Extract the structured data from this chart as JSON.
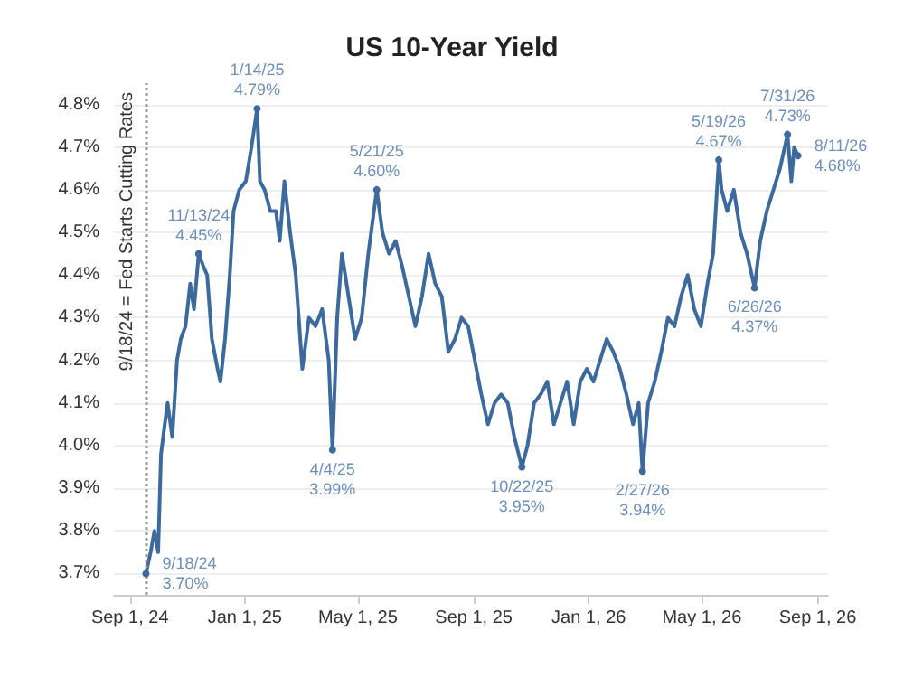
{
  "chart_data": {
    "type": "line",
    "title": "US 10-Year Yield",
    "x": [
      "2024-09-18",
      "2024-09-23",
      "2024-09-27",
      "2024-10-01",
      "2024-10-04",
      "2024-10-08",
      "2024-10-11",
      "2024-10-16",
      "2024-10-21",
      "2024-10-25",
      "2024-10-30",
      "2024-11-04",
      "2024-11-08",
      "2024-11-13",
      "2024-11-18",
      "2024-11-22",
      "2024-11-27",
      "2024-12-03",
      "2024-12-06",
      "2024-12-11",
      "2024-12-16",
      "2024-12-20",
      "2024-12-26",
      "2025-01-02",
      "2025-01-08",
      "2025-01-14",
      "2025-01-17",
      "2025-01-22",
      "2025-01-28",
      "2025-02-03",
      "2025-02-07",
      "2025-02-12",
      "2025-02-18",
      "2025-02-24",
      "2025-03-03",
      "2025-03-10",
      "2025-03-17",
      "2025-03-24",
      "2025-03-31",
      "2025-04-04",
      "2025-04-09",
      "2025-04-14",
      "2025-04-21",
      "2025-04-28",
      "2025-05-05",
      "2025-05-12",
      "2025-05-21",
      "2025-05-27",
      "2025-06-03",
      "2025-06-10",
      "2025-06-17",
      "2025-06-24",
      "2025-07-01",
      "2025-07-08",
      "2025-07-15",
      "2025-07-22",
      "2025-07-29",
      "2025-08-05",
      "2025-08-12",
      "2025-08-19",
      "2025-08-26",
      "2025-09-02",
      "2025-09-09",
      "2025-09-16",
      "2025-09-23",
      "2025-09-30",
      "2025-10-07",
      "2025-10-14",
      "2025-10-22",
      "2025-10-28",
      "2025-11-04",
      "2025-11-11",
      "2025-11-18",
      "2025-11-25",
      "2025-12-02",
      "2025-12-09",
      "2025-12-16",
      "2025-12-23",
      "2025-12-30",
      "2026-01-06",
      "2026-01-13",
      "2026-01-20",
      "2026-01-27",
      "2026-02-03",
      "2026-02-10",
      "2026-02-17",
      "2026-02-23",
      "2026-02-27",
      "2026-03-05",
      "2026-03-12",
      "2026-03-19",
      "2026-03-26",
      "2026-04-02",
      "2026-04-09",
      "2026-04-16",
      "2026-04-23",
      "2026-04-30",
      "2026-05-07",
      "2026-05-13",
      "2026-05-19",
      "2026-05-22",
      "2026-05-28",
      "2026-06-04",
      "2026-06-11",
      "2026-06-18",
      "2026-06-26",
      "2026-07-02",
      "2026-07-09",
      "2026-07-16",
      "2026-07-23",
      "2026-07-31",
      "2026-08-04",
      "2026-08-07",
      "2026-08-11"
    ],
    "series": [
      {
        "color": "#3d6a9c",
        "values": [
          3.7,
          3.75,
          3.8,
          3.75,
          3.98,
          4.05,
          4.1,
          4.02,
          4.2,
          4.25,
          4.28,
          4.38,
          4.32,
          4.45,
          4.42,
          4.4,
          4.25,
          4.18,
          4.15,
          4.25,
          4.4,
          4.55,
          4.6,
          4.62,
          4.7,
          4.79,
          4.62,
          4.6,
          4.55,
          4.55,
          4.48,
          4.62,
          4.5,
          4.4,
          4.18,
          4.3,
          4.28,
          4.32,
          4.2,
          3.99,
          4.3,
          4.45,
          4.35,
          4.25,
          4.3,
          4.45,
          4.6,
          4.5,
          4.45,
          4.48,
          4.42,
          4.35,
          4.28,
          4.35,
          4.45,
          4.38,
          4.35,
          4.22,
          4.25,
          4.3,
          4.28,
          4.2,
          4.12,
          4.05,
          4.1,
          4.12,
          4.1,
          4.02,
          3.95,
          4.0,
          4.1,
          4.12,
          4.15,
          4.05,
          4.1,
          4.15,
          4.05,
          4.15,
          4.18,
          4.15,
          4.2,
          4.25,
          4.22,
          4.18,
          4.12,
          4.05,
          4.1,
          3.94,
          4.1,
          4.15,
          4.22,
          4.3,
          4.28,
          4.35,
          4.4,
          4.32,
          4.28,
          4.38,
          4.45,
          4.67,
          4.6,
          4.55,
          4.6,
          4.5,
          4.45,
          4.37,
          4.48,
          4.55,
          4.6,
          4.65,
          4.73,
          4.62,
          4.7,
          4.68
        ]
      }
    ],
    "xlim": [
      "2024-08-15",
      "2026-09-12"
    ],
    "xticks": [
      {
        "value": "2024-09-01",
        "label": "Sep 1, 24"
      },
      {
        "value": "2025-01-01",
        "label": "Jan 1, 25"
      },
      {
        "value": "2025-05-01",
        "label": "May 1, 25"
      },
      {
        "value": "2025-09-01",
        "label": "Sep 1, 25"
      },
      {
        "value": "2026-01-01",
        "label": "Jan 1, 26"
      },
      {
        "value": "2026-05-01",
        "label": "May 1, 26"
      },
      {
        "value": "2026-09-01",
        "label": "Sep 1, 26"
      }
    ],
    "ylim": [
      3.65,
      4.85
    ],
    "yticks": [
      {
        "value": 3.7,
        "label": "3.7%"
      },
      {
        "value": 3.8,
        "label": "3.8%"
      },
      {
        "value": 3.9,
        "label": "3.9%"
      },
      {
        "value": 4.0,
        "label": "4.0%"
      },
      {
        "value": 4.1,
        "label": "4.1%"
      },
      {
        "value": 4.2,
        "label": "4.2%"
      },
      {
        "value": 4.3,
        "label": "4.3%"
      },
      {
        "value": 4.4,
        "label": "4.4%"
      },
      {
        "value": 4.5,
        "label": "4.5%"
      },
      {
        "value": 4.6,
        "label": "4.6%"
      },
      {
        "value": 4.7,
        "label": "4.7%"
      },
      {
        "value": 4.8,
        "label": "4.8%"
      }
    ],
    "grid": "y",
    "marker": "none",
    "line_style": "solid",
    "ref_lines": [
      {
        "axis": "x",
        "value": "2024-09-18",
        "label": "9/18/24 = Fed Starts Cutting Rates",
        "color": "#999999",
        "line_style": "dotted"
      }
    ],
    "annotations": [
      {
        "text": "9/18/24\n3.70%",
        "x": "2024-09-18",
        "y": 3.7
      },
      {
        "text": "11/13/24\n4.45%",
        "x": "2024-11-13",
        "y": 4.45
      },
      {
        "text": "1/14/25\n4.79%",
        "x": "2025-01-14",
        "y": 4.79
      },
      {
        "text": "4/4/25\n3.99%",
        "x": "2025-04-04",
        "y": 3.99
      },
      {
        "text": "5/21/25\n4.60%",
        "x": "2025-05-21",
        "y": 4.6
      },
      {
        "text": "10/22/25\n3.95%",
        "x": "2025-10-22",
        "y": 3.95
      },
      {
        "text": "2/27/26\n3.94%",
        "x": "2026-02-27",
        "y": 3.94
      },
      {
        "text": "5/19/26\n4.67%",
        "x": "2026-05-19",
        "y": 4.67
      },
      {
        "text": "6/26/26\n4.37%",
        "x": "2026-06-26",
        "y": 4.37
      },
      {
        "text": "7/31/26\n4.73%",
        "x": "2026-07-31",
        "y": 4.73
      },
      {
        "text": "8/11/26\n4.68%",
        "x": "2026-08-11",
        "y": 4.68
      }
    ]
  }
}
